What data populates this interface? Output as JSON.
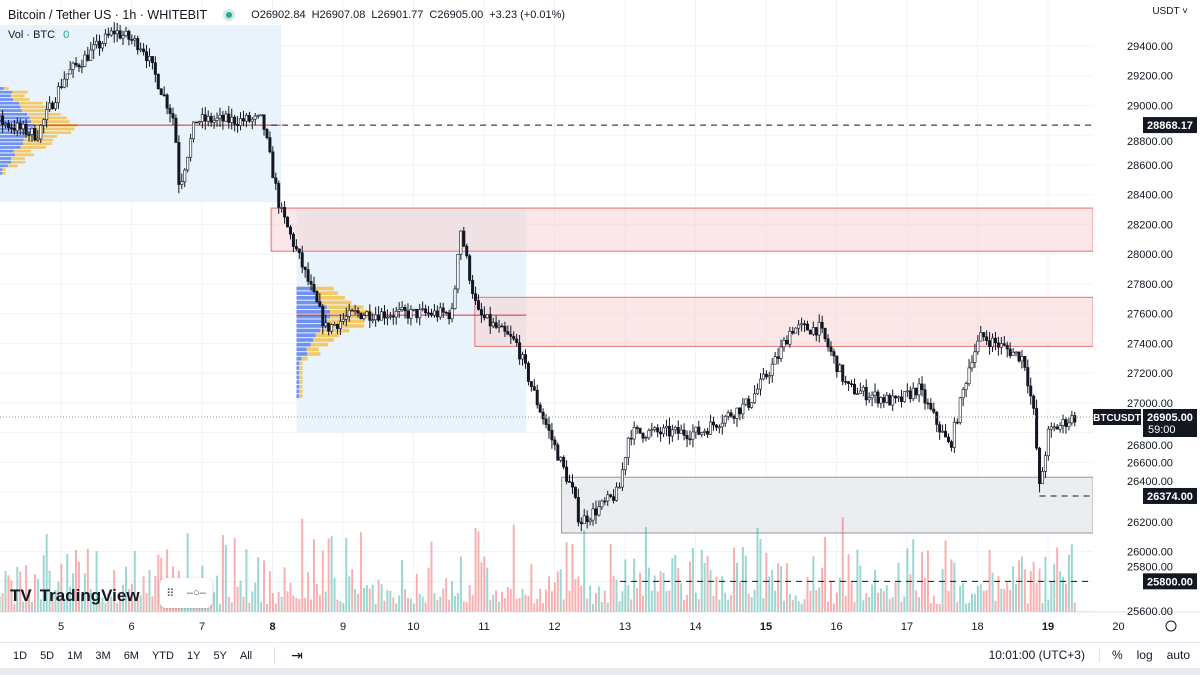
{
  "header": {
    "symbol": "Bitcoin / Tether US · 1h · WHITEBIT",
    "open": "O26902.84",
    "high": "H26907.08",
    "low": "L26901.77",
    "close": "C26905.00",
    "change": "+3.23 (+0.01%)",
    "volume_label": "Vol · BTC",
    "volume_value": "0",
    "currency": "USDT ˅"
  },
  "toolbar": {
    "ranges": [
      "1D",
      "5D",
      "1M",
      "3M",
      "6M",
      "YTD",
      "1Y",
      "5Y",
      "All"
    ],
    "time": "10:01:00 (UTC+3)",
    "percent": "%",
    "log": "log",
    "auto": "auto"
  },
  "logo": "TradingView",
  "colors": {
    "up": "#26a69a",
    "down": "#ef5350",
    "zone_red": "#f7cfd0",
    "zone_gray": "#e3e5ea",
    "profile_bg": "#e8f3fb"
  },
  "chart_data": {
    "type": "candlestick",
    "symbol": "BTCUSDT",
    "ylim": [
      25560,
      29560
    ],
    "y_ticks": [
      25600,
      25800,
      26000,
      26200,
      26400,
      26600,
      26800,
      27000,
      27200,
      27400,
      27600,
      27800,
      28000,
      28200,
      28400,
      28600,
      28800,
      29000,
      29200,
      29400
    ],
    "x_ticks": [
      "5",
      "6",
      "7",
      "8",
      "9",
      "10",
      "11",
      "12",
      "13",
      "14",
      "15",
      "16",
      "17",
      "18",
      "19",
      "20"
    ],
    "xlim_days": [
      4.13,
      19.64
    ],
    "path": [
      [
        4.13,
        28900
      ],
      [
        4.7,
        28800
      ],
      [
        5.1,
        29200
      ],
      [
        5.8,
        29500
      ],
      [
        6.2,
        29400
      ],
      [
        6.65,
        28900
      ],
      [
        6.72,
        28450
      ],
      [
        6.95,
        28900
      ],
      [
        7.9,
        28900
      ],
      [
        8.15,
        28300
      ],
      [
        8.4,
        28000
      ],
      [
        8.8,
        27500
      ],
      [
        9.2,
        27600
      ],
      [
        9.8,
        27600
      ],
      [
        10.6,
        27600
      ],
      [
        10.7,
        28200
      ],
      [
        10.82,
        27900
      ],
      [
        10.95,
        27600
      ],
      [
        11.5,
        27400
      ],
      [
        11.8,
        27000
      ],
      [
        12.3,
        26400
      ],
      [
        12.4,
        26200
      ],
      [
        12.7,
        26300
      ],
      [
        12.95,
        26400
      ],
      [
        13.1,
        26800
      ],
      [
        14.1,
        26800
      ],
      [
        14.8,
        27000
      ],
      [
        15.2,
        27300
      ],
      [
        15.4,
        27500
      ],
      [
        15.8,
        27500
      ],
      [
        16.2,
        27100
      ],
      [
        16.9,
        27000
      ],
      [
        17.2,
        27100
      ],
      [
        17.65,
        26700
      ],
      [
        17.95,
        27300
      ],
      [
        18.1,
        27450
      ],
      [
        18.7,
        27300
      ],
      [
        18.85,
        26900
      ],
      [
        18.92,
        26420
      ],
      [
        19.05,
        26800
      ],
      [
        19.4,
        26905
      ]
    ],
    "last_price": "26905.00",
    "countdown": "59:00",
    "levels": [
      {
        "price": 28868.17,
        "label": "28868.17",
        "from_day": 7.98
      },
      {
        "price": 26374,
        "label": "26374.00",
        "from_day": 18.88
      },
      {
        "price": 25800,
        "label": "25800.00",
        "from_day": 12.93
      }
    ],
    "zones": [
      {
        "kind": "red",
        "top": 28310,
        "bottom": 28020,
        "from_day": 7.98,
        "to_day": 19.64
      },
      {
        "kind": "red",
        "top": 27710,
        "bottom": 27380,
        "from_day": 10.87,
        "to_day": 19.64
      },
      {
        "kind": "gray",
        "top": 26500,
        "bottom": 26125,
        "from_day": 12.1,
        "to_day": 19.64
      }
    ],
    "volume_profiles": [
      {
        "from_day": 4.13,
        "to_day": 8.12,
        "top": 29540,
        "bottom": 28350,
        "poc": 28868
      },
      {
        "from_day": 8.34,
        "to_day": 11.6,
        "top": 28310,
        "bottom": 26800,
        "poc": 27590
      }
    ]
  }
}
